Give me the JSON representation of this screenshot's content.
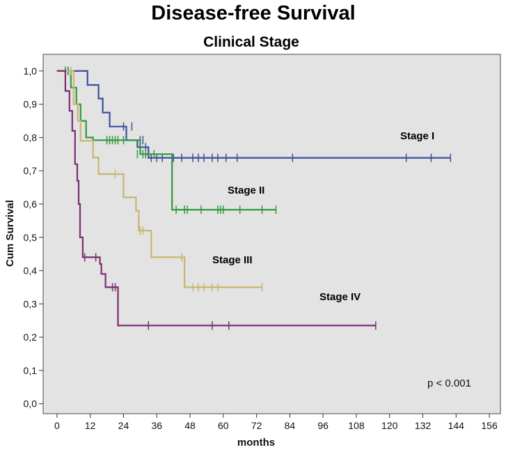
{
  "chart_data": {
    "type": "line",
    "subtype": "kaplan-meier",
    "title": "Disease-free Survival",
    "subtitle": "Clinical Stage",
    "xlabel": "months",
    "ylabel": "Cum Survival",
    "xlim": [
      -5,
      160
    ],
    "ylim": [
      -0.03,
      1.05
    ],
    "x_ticks": [
      0,
      12,
      24,
      36,
      48,
      60,
      72,
      84,
      96,
      108,
      120,
      132,
      144,
      156
    ],
    "y_ticks": [
      0.0,
      0.1,
      0.2,
      0.3,
      0.4,
      0.5,
      0.6,
      0.7,
      0.8,
      0.9,
      1.0
    ],
    "y_tick_labels": [
      "0,0",
      "0,1",
      "0,2",
      "0,3",
      "0,4",
      "0,5",
      "0,6",
      "0,7",
      "0,8",
      "0,9",
      "1,0"
    ],
    "grid": false,
    "background": "#e3e3e3",
    "annotation": "p < 0.001",
    "series": [
      {
        "name": "Stage I",
        "color": "#3a4f9a",
        "steps": [
          [
            0,
            1.0
          ],
          [
            11,
            0.958
          ],
          [
            15,
            0.917
          ],
          [
            16.5,
            0.875
          ],
          [
            19,
            0.833
          ],
          [
            25,
            0.792
          ],
          [
            29,
            0.771
          ],
          [
            33,
            0.739
          ],
          [
            142,
            0.739
          ]
        ],
        "censored": [
          [
            3,
            1.0
          ],
          [
            4,
            1.0
          ],
          [
            24,
            0.833
          ],
          [
            27,
            0.833
          ],
          [
            30,
            0.792
          ],
          [
            31,
            0.792
          ],
          [
            32,
            0.771
          ],
          [
            34,
            0.739
          ],
          [
            36,
            0.739
          ],
          [
            38,
            0.739
          ],
          [
            42,
            0.739
          ],
          [
            45,
            0.739
          ],
          [
            49,
            0.739
          ],
          [
            51,
            0.739
          ],
          [
            53,
            0.739
          ],
          [
            56,
            0.739
          ],
          [
            58,
            0.739
          ],
          [
            61,
            0.739
          ],
          [
            65,
            0.739
          ],
          [
            85,
            0.739
          ],
          [
            126,
            0.739
          ],
          [
            135,
            0.739
          ],
          [
            142,
            0.739
          ]
        ]
      },
      {
        "name": "Stage II",
        "color": "#2e9a3a",
        "steps": [
          [
            0,
            1.0
          ],
          [
            5,
            0.95
          ],
          [
            7,
            0.9
          ],
          [
            8.5,
            0.85
          ],
          [
            10.5,
            0.8
          ],
          [
            13,
            0.792
          ],
          [
            30,
            0.75
          ],
          [
            41.5,
            0.583
          ],
          [
            79,
            0.583
          ]
        ],
        "censored": [
          [
            3,
            1.0
          ],
          [
            4,
            1.0
          ],
          [
            18,
            0.792
          ],
          [
            19,
            0.792
          ],
          [
            20,
            0.792
          ],
          [
            21,
            0.792
          ],
          [
            22,
            0.792
          ],
          [
            24,
            0.792
          ],
          [
            29,
            0.75
          ],
          [
            31,
            0.75
          ],
          [
            32,
            0.75
          ],
          [
            35,
            0.75
          ],
          [
            43,
            0.583
          ],
          [
            46,
            0.583
          ],
          [
            47,
            0.583
          ],
          [
            52,
            0.583
          ],
          [
            58,
            0.583
          ],
          [
            59,
            0.583
          ],
          [
            60,
            0.583
          ],
          [
            66,
            0.583
          ],
          [
            74,
            0.583
          ],
          [
            79,
            0.583
          ]
        ]
      },
      {
        "name": "Stage III",
        "color": "#c9b56e",
        "steps": [
          [
            0,
            1.0
          ],
          [
            6,
            0.9
          ],
          [
            7.5,
            0.85
          ],
          [
            8.5,
            0.79
          ],
          [
            13,
            0.74
          ],
          [
            15,
            0.69
          ],
          [
            24,
            0.62
          ],
          [
            28.5,
            0.58
          ],
          [
            29.5,
            0.52
          ],
          [
            34,
            0.44
          ],
          [
            42,
            0.44
          ],
          [
            46,
            0.35
          ],
          [
            74,
            0.35
          ]
        ],
        "censored": [
          [
            5,
            1.0
          ],
          [
            21,
            0.69
          ],
          [
            30,
            0.52
          ],
          [
            31,
            0.52
          ],
          [
            45,
            0.44
          ],
          [
            49,
            0.35
          ],
          [
            51,
            0.35
          ],
          [
            53,
            0.35
          ],
          [
            56,
            0.35
          ],
          [
            58,
            0.35
          ],
          [
            74,
            0.35
          ]
        ]
      },
      {
        "name": "Stage IV",
        "color": "#7b2b72",
        "steps": [
          [
            0,
            1.0
          ],
          [
            3,
            0.94
          ],
          [
            4.5,
            0.88
          ],
          [
            5.5,
            0.82
          ],
          [
            6.5,
            0.72
          ],
          [
            7.3,
            0.67
          ],
          [
            7.8,
            0.6
          ],
          [
            8.3,
            0.5
          ],
          [
            9.3,
            0.44
          ],
          [
            15.5,
            0.42
          ],
          [
            16,
            0.39
          ],
          [
            17.5,
            0.35
          ],
          [
            21,
            0.35
          ],
          [
            22,
            0.235
          ],
          [
            115,
            0.235
          ]
        ],
        "censored": [
          [
            10,
            0.44
          ],
          [
            14,
            0.44
          ],
          [
            20,
            0.35
          ],
          [
            21,
            0.35
          ],
          [
            33,
            0.235
          ],
          [
            56,
            0.235
          ],
          [
            62,
            0.235
          ],
          [
            115,
            0.235
          ]
        ]
      }
    ]
  }
}
